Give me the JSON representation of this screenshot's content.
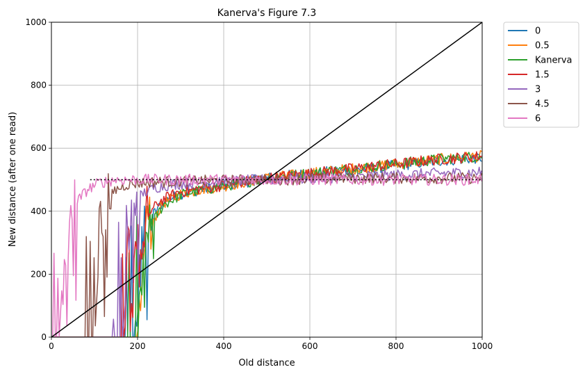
{
  "chart_data": {
    "type": "line",
    "title": "Kanerva's Figure 7.3",
    "xlabel": "Old distance",
    "ylabel": "New distance (after one read)",
    "xlim": [
      0,
      1000
    ],
    "ylim": [
      0,
      1000
    ],
    "xticks": [
      0,
      200,
      400,
      600,
      800,
      1000
    ],
    "yticks": [
      0,
      200,
      400,
      600,
      800,
      1000
    ],
    "xtick_labels": [
      "0",
      "200",
      "400",
      "600",
      "800",
      "1000"
    ],
    "ytick_labels": [
      "0",
      "200",
      "400",
      "600",
      "800",
      "1000"
    ],
    "grid": true,
    "legend_position": "outside-upper-right",
    "series": [
      {
        "name": "0",
        "color": "#1f77b4",
        "threshold": 195,
        "x": [
          195,
          210,
          230,
          260,
          300,
          350,
          400,
          500,
          600,
          700,
          800,
          900,
          1000
        ],
        "y": [
          0,
          300,
          380,
          430,
          455,
          470,
          480,
          505,
          520,
          530,
          545,
          560,
          570
        ]
      },
      {
        "name": "0.5",
        "color": "#ff7f0e",
        "threshold": 200,
        "x": [
          200,
          215,
          235,
          260,
          300,
          350,
          400,
          500,
          600,
          700,
          800,
          900,
          1000
        ],
        "y": [
          0,
          280,
          370,
          425,
          455,
          470,
          480,
          505,
          520,
          535,
          550,
          565,
          575
        ]
      },
      {
        "name": "Kanerva",
        "color": "#2ca02c",
        "threshold": 200,
        "x": [
          200,
          215,
          235,
          260,
          300,
          350,
          400,
          500,
          600,
          700,
          800,
          900,
          1000
        ],
        "y": [
          0,
          270,
          365,
          420,
          452,
          468,
          480,
          505,
          520,
          535,
          550,
          565,
          575
        ]
      },
      {
        "name": "1.5",
        "color": "#d62728",
        "threshold": 185,
        "x": [
          185,
          200,
          220,
          250,
          290,
          340,
          400,
          500,
          600,
          700,
          800,
          900,
          1000
        ],
        "y": [
          0,
          300,
          380,
          430,
          458,
          470,
          482,
          505,
          520,
          535,
          550,
          565,
          575
        ]
      },
      {
        "name": "3",
        "color": "#9467bd",
        "threshold": 165,
        "x": [
          165,
          175,
          190,
          210,
          240,
          280,
          330,
          400,
          500,
          600,
          700,
          800,
          900,
          1000
        ],
        "y": [
          0,
          350,
          420,
          455,
          475,
          485,
          490,
          495,
          500,
          505,
          510,
          515,
          520,
          525
        ]
      },
      {
        "name": "4.5",
        "color": "#8c564b",
        "threshold": 100,
        "x": [
          100,
          110,
          125,
          145,
          175,
          220,
          300,
          400,
          500,
          600,
          700,
          800,
          900,
          1000
        ],
        "y": [
          0,
          300,
          420,
          465,
          485,
          492,
          495,
          498,
          500,
          502,
          505,
          505,
          505,
          505
        ]
      },
      {
        "name": "6",
        "color": "#e377c2",
        "threshold": 20,
        "x": [
          0,
          20,
          35,
          50,
          65,
          85,
          110,
          150,
          200,
          300,
          400,
          500,
          600,
          700,
          800,
          900,
          1000
        ],
        "y": [
          10,
          40,
          250,
          400,
          440,
          470,
          490,
          500,
          500,
          500,
          500,
          500,
          500,
          500,
          500,
          500,
          500
        ]
      }
    ],
    "reference_lines": [
      {
        "kind": "diagonal",
        "x": [
          0,
          1000
        ],
        "y": [
          0,
          1000
        ],
        "color": "#000000",
        "style": "solid"
      },
      {
        "kind": "horizontal",
        "x": [
          0,
          1000
        ],
        "y": [
          500,
          500
        ],
        "color": "#000000",
        "style": "dotted"
      }
    ]
  }
}
